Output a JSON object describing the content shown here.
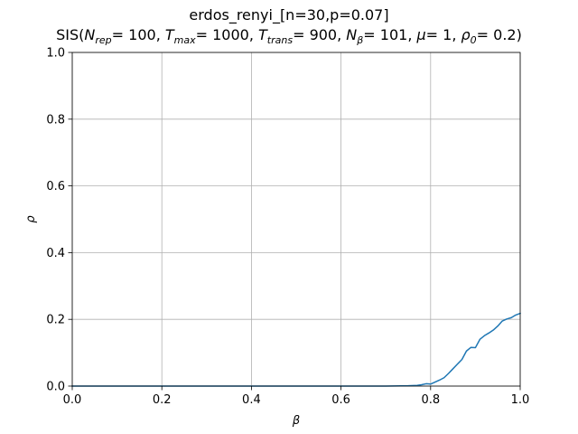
{
  "chart_data": {
    "type": "line",
    "title": "erdos_renyi_[n=30,p=0.07]",
    "subtitle": {
      "prefix": "SIS(",
      "params": [
        {
          "sym": "N",
          "sub": "rep",
          "value": "100"
        },
        {
          "sym": "T",
          "sub": "max",
          "value": "1000"
        },
        {
          "sym": "T",
          "sub": "trans",
          "value": "900"
        },
        {
          "sym": "N",
          "sub": "β",
          "value": "101"
        },
        {
          "sym": "μ",
          "sub": "",
          "value": "1"
        },
        {
          "sym": "ρ",
          "sub": "0",
          "value": "0.2"
        }
      ],
      "suffix": ")"
    },
    "xlabel": "β",
    "ylabel": "ρ",
    "xlim": [
      0,
      1
    ],
    "ylim": [
      0,
      1
    ],
    "xticks": [
      "0.0",
      "0.2",
      "0.4",
      "0.6",
      "0.8",
      "1.0"
    ],
    "yticks": [
      "0.0",
      "0.2",
      "0.4",
      "0.6",
      "0.8",
      "1.0"
    ],
    "grid": true,
    "line_color": "#1f77b4",
    "series": [
      {
        "x": [
          0,
          0.7,
          0.75,
          0.77,
          0.78,
          0.79,
          0.8,
          0.81,
          0.82,
          0.83,
          0.84,
          0.85,
          0.86,
          0.87,
          0.88,
          0.89,
          0.9,
          0.91,
          0.92,
          0.93,
          0.94,
          0.95,
          0.96,
          0.97,
          0.98,
          0.99,
          1.0
        ],
        "y": [
          0,
          0,
          0.001,
          0.002,
          0.004,
          0.007,
          0.006,
          0.012,
          0.018,
          0.025,
          0.038,
          0.052,
          0.066,
          0.08,
          0.105,
          0.116,
          0.115,
          0.14,
          0.151,
          0.159,
          0.168,
          0.18,
          0.195,
          0.201,
          0.205,
          0.213,
          0.218
        ]
      }
    ]
  }
}
